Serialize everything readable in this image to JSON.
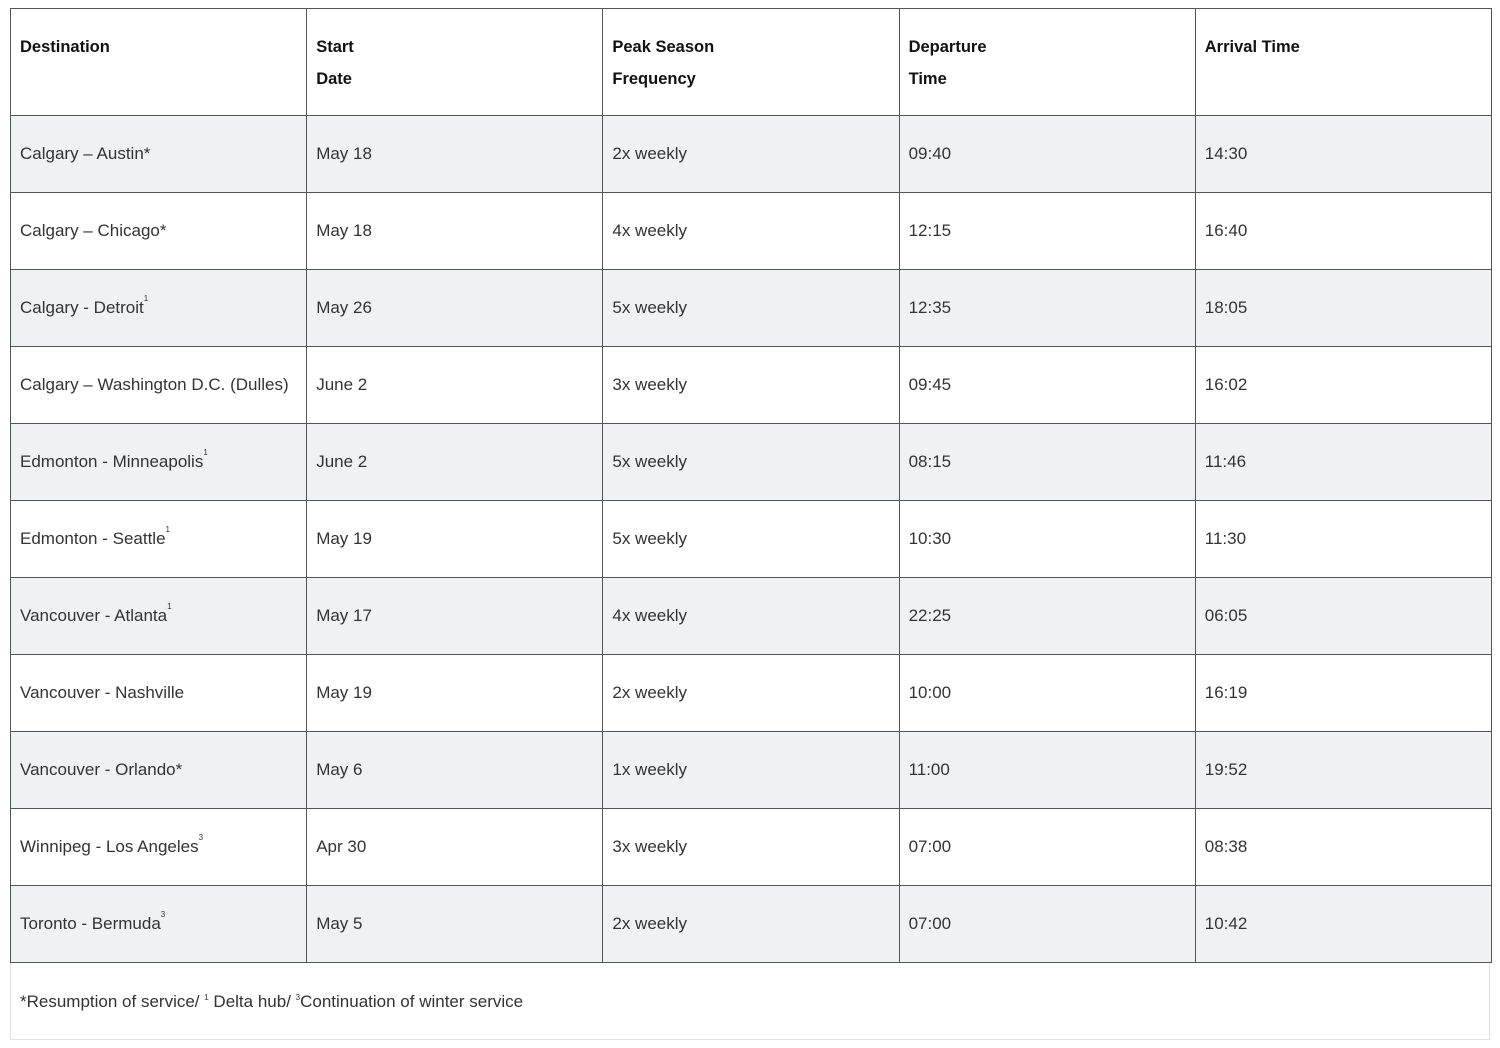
{
  "headers": [
    [
      "Destination"
    ],
    [
      "Start",
      "Date"
    ],
    [
      "Peak Season",
      "Frequency"
    ],
    [
      "Departure",
      "Time"
    ],
    [
      "Arrival Time"
    ]
  ],
  "rows": [
    {
      "destination": "Calgary – Austin*",
      "sup": "",
      "start": "May 18",
      "frequency": "2x weekly",
      "departure": "09:40",
      "arrival": "14:30"
    },
    {
      "destination": "Calgary – Chicago*",
      "sup": "",
      "start": "May 18",
      "frequency": "4x weekly",
      "departure": "12:15",
      "arrival": "16:40"
    },
    {
      "destination": "Calgary - Detroit",
      "sup": "1",
      "start": "May 26",
      "frequency": "5x weekly",
      "departure": "12:35",
      "arrival": "18:05"
    },
    {
      "destination": "Calgary – Washington D.C. (Dulles)",
      "sup": "",
      "start": "June 2",
      "frequency": "3x weekly",
      "departure": "09:45",
      "arrival": "16:02"
    },
    {
      "destination": "Edmonton - Minneapolis",
      "sup": "1",
      "start": "June 2",
      "frequency": "5x weekly",
      "departure": "08:15",
      "arrival": "11:46"
    },
    {
      "destination": "Edmonton - Seattle",
      "sup": "1",
      "start": "May 19",
      "frequency": "5x weekly",
      "departure": "10:30",
      "arrival": "11:30"
    },
    {
      "destination": "Vancouver - Atlanta",
      "sup": "1",
      "start": "May 17",
      "frequency": "4x weekly",
      "departure": "22:25",
      "arrival": "06:05"
    },
    {
      "destination": "Vancouver - Nashville",
      "sup": "",
      "start": "May 19",
      "frequency": "2x weekly",
      "departure": "10:00",
      "arrival": "16:19"
    },
    {
      "destination": "Vancouver - Orlando*",
      "sup": "",
      "start": "May 6",
      "frequency": "1x weekly",
      "departure": "11:00",
      "arrival": "19:52"
    },
    {
      "destination": "Winnipeg - Los Angeles",
      "sup": "3",
      "start": "Apr 30",
      "frequency": "3x weekly",
      "departure": "07:00",
      "arrival": "08:38"
    },
    {
      "destination": "Toronto - Bermuda",
      "sup": "3",
      "start": "May 5",
      "frequency": "2x weekly",
      "departure": "07:00",
      "arrival": "10:42"
    }
  ],
  "footnote": {
    "part1": "*Resumption of service/ ",
    "sup1": "1",
    "part2": " Delta hub/ ",
    "sup2": "3",
    "part3": "Continuation of winter service"
  },
  "colors": {
    "stripe": "#eff2f3",
    "border": "#555555"
  }
}
